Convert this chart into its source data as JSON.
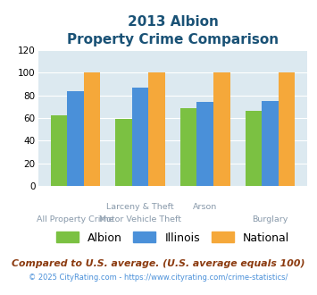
{
  "title_line1": "2013 Albion",
  "title_line2": "Property Crime Comparison",
  "albion": [
    62,
    59,
    69,
    66
  ],
  "illinois": [
    84,
    87,
    74,
    75
  ],
  "national": [
    100,
    100,
    100,
    100
  ],
  "color_albion": "#7bc142",
  "color_illinois": "#4a90d9",
  "color_national": "#f5a83a",
  "bg_color": "#dce9f0",
  "ylim": [
    0,
    120
  ],
  "yticks": [
    0,
    20,
    40,
    60,
    80,
    100,
    120
  ],
  "footnote1": "Compared to U.S. average. (U.S. average equals 100)",
  "footnote2": "© 2025 CityRating.com - https://www.cityrating.com/crime-statistics/",
  "title_color": "#1a5276",
  "footnote1_color": "#8b3a0f",
  "footnote2_color": "#4a90d9",
  "label_color": "#8899aa",
  "legend_labels": [
    "Albion",
    "Illinois",
    "National"
  ],
  "top_labels": [
    "",
    "Larceny & Theft",
    "Arson",
    ""
  ],
  "bottom_labels": [
    "All Property Crime",
    "Motor Vehicle Theft",
    "",
    "Burglary"
  ]
}
